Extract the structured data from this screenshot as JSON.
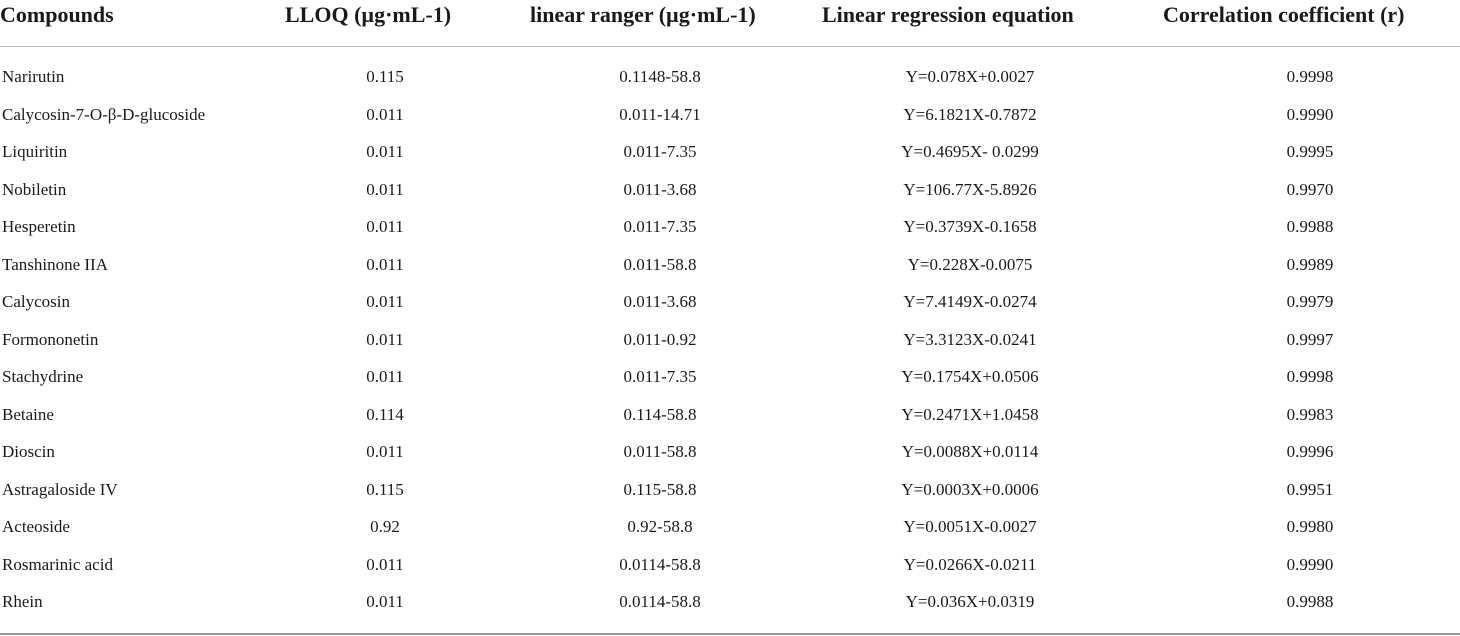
{
  "table": {
    "headers": [
      "Compounds",
      "LLOQ (µg·mL-1)",
      "linear ranger (µg·mL-1)",
      "Linear regression equation",
      "Correlation coefficient (r)"
    ],
    "rows": [
      [
        "Narirutin",
        "0.115",
        "0.1148-58.8",
        "Y=0.078X+0.0027",
        "0.9998"
      ],
      [
        "Calycosin-7-O-β-D-glucoside",
        "0.011",
        "0.011-14.71",
        "Y=6.1821X-0.7872",
        "0.9990"
      ],
      [
        "Liquiritin",
        "0.011",
        "0.011-7.35",
        "Y=0.4695X- 0.0299",
        "0.9995"
      ],
      [
        "Nobiletin",
        "0.011",
        "0.011-3.68",
        "Y=106.77X-5.8926",
        "0.9970"
      ],
      [
        "Hesperetin",
        "0.011",
        "0.011-7.35",
        "Y=0.3739X-0.1658",
        "0.9988"
      ],
      [
        "Tanshinone IIA",
        "0.011",
        "0.011-58.8",
        "Y=0.228X-0.0075",
        "0.9989"
      ],
      [
        "Calycosin",
        "0.011",
        "0.011-3.68",
        "Y=7.4149X-0.0274",
        "0.9979"
      ],
      [
        "Formononetin",
        "0.011",
        "0.011-0.92",
        "Y=3.3123X-0.0241",
        "0.9997"
      ],
      [
        "Stachydrine",
        "0.011",
        "0.011-7.35",
        "Y=0.1754X+0.0506",
        "0.9998"
      ],
      [
        "Betaine",
        "0.114",
        "0.114-58.8",
        "Y=0.2471X+1.0458",
        "0.9983"
      ],
      [
        "Dioscin",
        "0.011",
        "0.011-58.8",
        "Y=0.0088X+0.0114",
        "0.9996"
      ],
      [
        "Astragaloside IV",
        "0.115",
        "0.115-58.8",
        "Y=0.0003X+0.0006",
        "0.9951"
      ],
      [
        "Acteoside",
        "0.92",
        "0.92-58.8",
        "Y=0.0051X-0.0027",
        "0.9980"
      ],
      [
        "Rosmarinic acid",
        "0.011",
        "0.0114-58.8",
        "Y=0.0266X-0.0211",
        "0.9990"
      ],
      [
        "Rhein",
        "0.011",
        "0.0114-58.8",
        "Y=0.036X+0.0319",
        "0.9988"
      ]
    ]
  }
}
